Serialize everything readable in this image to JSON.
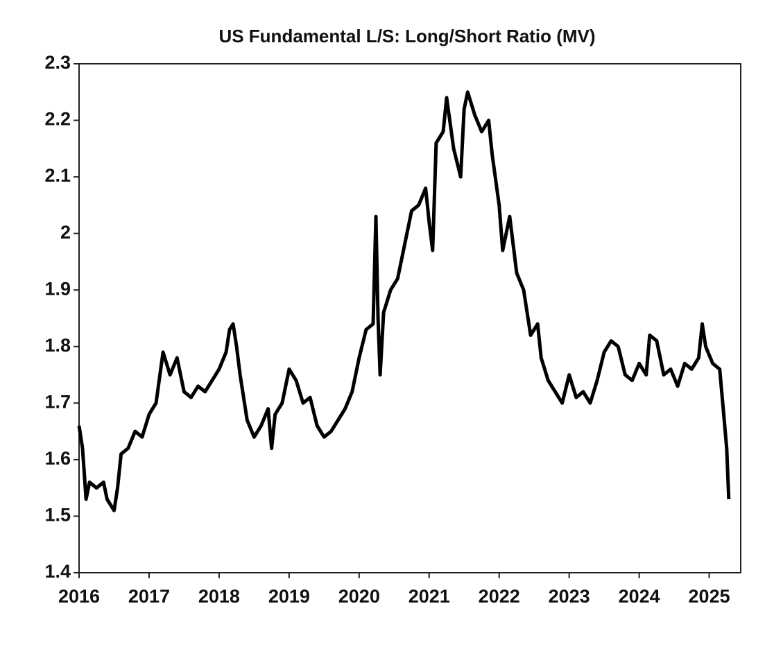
{
  "chart_data": {
    "type": "line",
    "title": "US Fundamental L/S: Long/Short Ratio (MV)",
    "x": [
      2016.0,
      2016.05,
      2016.1,
      2016.15,
      2016.25,
      2016.35,
      2016.4,
      2016.5,
      2016.55,
      2016.6,
      2016.7,
      2016.8,
      2016.9,
      2017.0,
      2017.1,
      2017.2,
      2017.3,
      2017.4,
      2017.5,
      2017.6,
      2017.7,
      2017.8,
      2017.9,
      2018.0,
      2018.1,
      2018.15,
      2018.2,
      2018.25,
      2018.3,
      2018.4,
      2018.5,
      2018.6,
      2018.7,
      2018.75,
      2018.8,
      2018.9,
      2019.0,
      2019.1,
      2019.2,
      2019.3,
      2019.4,
      2019.5,
      2019.6,
      2019.7,
      2019.8,
      2019.9,
      2020.0,
      2020.1,
      2020.2,
      2020.24,
      2020.27,
      2020.3,
      2020.35,
      2020.45,
      2020.55,
      2020.65,
      2020.75,
      2020.85,
      2020.95,
      2021.0,
      2021.05,
      2021.1,
      2021.2,
      2021.25,
      2021.35,
      2021.45,
      2021.5,
      2021.55,
      2021.65,
      2021.75,
      2021.85,
      2021.9,
      2022.0,
      2022.05,
      2022.15,
      2022.25,
      2022.35,
      2022.45,
      2022.55,
      2022.6,
      2022.7,
      2022.8,
      2022.9,
      2023.0,
      2023.1,
      2023.2,
      2023.3,
      2023.4,
      2023.5,
      2023.6,
      2023.7,
      2023.8,
      2023.9,
      2024.0,
      2024.1,
      2024.15,
      2024.25,
      2024.35,
      2024.45,
      2024.55,
      2024.65,
      2024.75,
      2024.85,
      2024.9,
      2024.95,
      2025.05,
      2025.15,
      2025.2,
      2025.25,
      2025.28
    ],
    "values": [
      1.66,
      1.62,
      1.53,
      1.56,
      1.55,
      1.56,
      1.53,
      1.51,
      1.55,
      1.61,
      1.62,
      1.65,
      1.64,
      1.68,
      1.7,
      1.79,
      1.75,
      1.78,
      1.72,
      1.71,
      1.73,
      1.72,
      1.74,
      1.76,
      1.79,
      1.83,
      1.84,
      1.8,
      1.75,
      1.67,
      1.64,
      1.66,
      1.69,
      1.62,
      1.68,
      1.7,
      1.76,
      1.74,
      1.7,
      1.71,
      1.66,
      1.64,
      1.65,
      1.67,
      1.69,
      1.72,
      1.78,
      1.83,
      1.84,
      2.03,
      1.85,
      1.75,
      1.86,
      1.9,
      1.92,
      1.98,
      2.04,
      2.05,
      2.08,
      2.02,
      1.97,
      2.16,
      2.18,
      2.24,
      2.15,
      2.1,
      2.22,
      2.25,
      2.21,
      2.18,
      2.2,
      2.14,
      2.05,
      1.97,
      2.03,
      1.93,
      1.9,
      1.82,
      1.84,
      1.78,
      1.74,
      1.72,
      1.7,
      1.75,
      1.71,
      1.72,
      1.7,
      1.74,
      1.79,
      1.81,
      1.8,
      1.75,
      1.74,
      1.77,
      1.75,
      1.82,
      1.81,
      1.75,
      1.76,
      1.73,
      1.77,
      1.76,
      1.78,
      1.84,
      1.8,
      1.77,
      1.76,
      1.69,
      1.62,
      1.53
    ],
    "color": "#000000",
    "xlim": [
      2016,
      2025.45
    ],
    "xticks": [
      2016,
      2017,
      2018,
      2019,
      2020,
      2021,
      2022,
      2023,
      2024,
      2025
    ],
    "ylim": [
      1.4,
      2.3
    ],
    "yticks": [
      1.4,
      1.5,
      1.6,
      1.7,
      1.8,
      1.9,
      2,
      2.1,
      2.2,
      2.3
    ]
  }
}
